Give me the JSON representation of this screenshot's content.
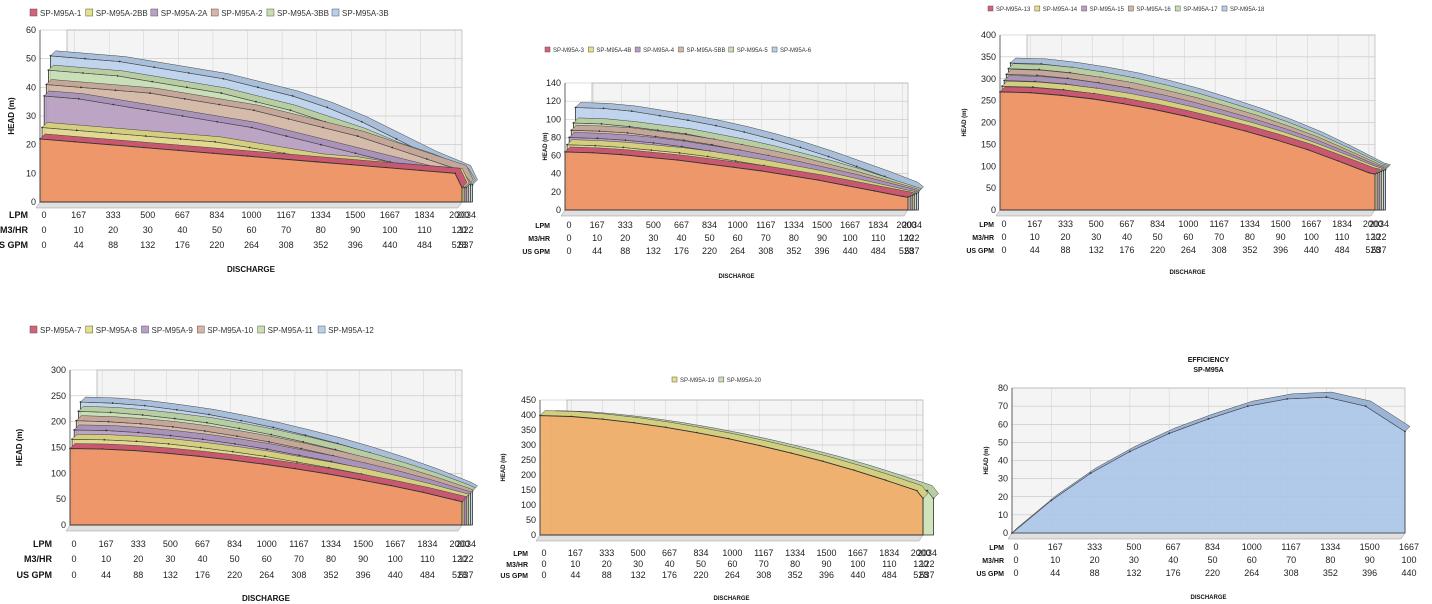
{
  "common": {
    "ylabel": "HEAD (m)",
    "xlabel": "DISCHARGE",
    "row_labels": [
      "LPM",
      "M3/HR",
      "US GPM"
    ],
    "lpm": [
      "0",
      "167",
      "333",
      "500",
      "667",
      "834",
      "1000",
      "1167",
      "1334",
      "1500",
      "1667",
      "1834",
      "2000",
      "2034"
    ],
    "m3hr": [
      "0",
      "10",
      "20",
      "30",
      "40",
      "50",
      "60",
      "70",
      "80",
      "90",
      "100",
      "110",
      "120",
      "122"
    ],
    "usgpm": [
      "0",
      "44",
      "88",
      "132",
      "176",
      "220",
      "264",
      "308",
      "352",
      "396",
      "440",
      "484",
      "528",
      "537"
    ]
  },
  "chart_data": [
    {
      "type": "area",
      "x": [
        0,
        10,
        20,
        30,
        40,
        50,
        60,
        70,
        80,
        90,
        100,
        110,
        120,
        122
      ],
      "xlabel": "DISCHARGE",
      "ylabel": "HEAD (m)",
      "ylim": [
        0,
        60
      ],
      "yticks": [
        0,
        10,
        20,
        30,
        40,
        50,
        60
      ],
      "legend": "top",
      "series": [
        {
          "name": "SP-M95A-1",
          "color": "#d9607a",
          "values": [
            22,
            21,
            20,
            19,
            18,
            17,
            16,
            15,
            14,
            13,
            12,
            11,
            10,
            5
          ]
        },
        {
          "name": "SP-M95A-2BB",
          "color": "#e6e08a",
          "values": [
            26,
            25,
            24,
            23,
            22,
            21,
            19,
            17,
            15,
            14,
            12,
            11,
            10,
            5
          ]
        },
        {
          "name": "SP-M95A-2A",
          "color": "#b8a0c8",
          "values": [
            37,
            36,
            34,
            32,
            30,
            28,
            26,
            23,
            20,
            17,
            14,
            11,
            8,
            5
          ]
        },
        {
          "name": "SP-M95A-2",
          "color": "#d6b6a6",
          "values": [
            41,
            40,
            39,
            38,
            36,
            34,
            32,
            29,
            26,
            23,
            19,
            15,
            11,
            6
          ]
        },
        {
          "name": "SP-M95A-3BB",
          "color": "#c8e0b0",
          "values": [
            46,
            45,
            44,
            42,
            40,
            38,
            35,
            32,
            28,
            24,
            19,
            15,
            10,
            6
          ]
        },
        {
          "name": "SP-M95A-3B",
          "color": "#b8d0ec",
          "values": [
            51,
            50,
            49,
            47,
            45,
            43,
            40,
            37,
            33,
            28,
            22,
            16,
            11,
            6
          ]
        }
      ]
    },
    {
      "type": "area",
      "x": [
        0,
        10,
        20,
        30,
        40,
        50,
        60,
        70,
        80,
        90,
        100,
        110,
        120,
        122
      ],
      "xlabel": "DISCHARGE",
      "ylabel": "HEAD (m)",
      "ylim": [
        0,
        140
      ],
      "yticks": [
        0,
        20,
        40,
        60,
        80,
        100,
        120,
        140
      ],
      "legend": "top",
      "series": [
        {
          "name": "SP-M95A-3",
          "color": "#d9607a",
          "values": [
            64,
            63,
            61,
            58,
            55,
            51,
            47,
            43,
            38,
            33,
            27,
            21,
            15,
            14
          ]
        },
        {
          "name": "SP-M95A-4B",
          "color": "#e6e08a",
          "values": [
            72,
            71,
            69,
            66,
            63,
            59,
            54,
            49,
            43,
            37,
            30,
            23,
            16,
            15
          ]
        },
        {
          "name": "SP-M95A-4",
          "color": "#b8a0c8",
          "values": [
            80,
            79,
            77,
            74,
            70,
            65,
            60,
            54,
            48,
            41,
            34,
            26,
            18,
            16
          ]
        },
        {
          "name": "SP-M95A-5BB",
          "color": "#d6b6a6",
          "values": [
            88,
            87,
            85,
            81,
            77,
            72,
            66,
            60,
            53,
            45,
            37,
            28,
            19,
            17
          ]
        },
        {
          "name": "SP-M95A-5",
          "color": "#c8e0b0",
          "values": [
            96,
            95,
            92,
            88,
            84,
            78,
            72,
            65,
            57,
            49,
            40,
            30,
            20,
            18
          ]
        },
        {
          "name": "SP-M95A-6",
          "color": "#b8d0ec",
          "values": [
            113,
            112,
            109,
            104,
            99,
            93,
            86,
            78,
            69,
            59,
            48,
            37,
            25,
            20
          ]
        }
      ]
    },
    {
      "type": "area",
      "x": [
        0,
        10,
        20,
        30,
        40,
        50,
        60,
        70,
        80,
        90,
        100,
        110,
        120,
        122
      ],
      "xlabel": "DISCHARGE",
      "ylabel": "HEAD (m)",
      "ylim": [
        0,
        400
      ],
      "yticks": [
        0,
        50,
        100,
        150,
        200,
        250,
        300,
        350,
        400
      ],
      "legend": "top",
      "series": [
        {
          "name": "SP-M95A-13",
          "color": "#d9607a",
          "values": [
            270,
            268,
            262,
            254,
            243,
            230,
            215,
            198,
            180,
            160,
            138,
            112,
            85,
            82
          ]
        },
        {
          "name": "SP-M95A-14",
          "color": "#e6e08a",
          "values": [
            283,
            281,
            275,
            266,
            255,
            241,
            225,
            207,
            188,
            167,
            143,
            116,
            88,
            84
          ]
        },
        {
          "name": "SP-M95A-15",
          "color": "#b8a0c8",
          "values": [
            296,
            294,
            288,
            278,
            266,
            252,
            235,
            216,
            196,
            174,
            149,
            120,
            90,
            86
          ]
        },
        {
          "name": "SP-M95A-16",
          "color": "#d6b6a6",
          "values": [
            310,
            308,
            301,
            291,
            279,
            263,
            246,
            226,
            205,
            181,
            155,
            124,
            92,
            88
          ]
        },
        {
          "name": "SP-M95A-17",
          "color": "#c8e0b0",
          "values": [
            323,
            321,
            314,
            303,
            290,
            274,
            256,
            235,
            213,
            188,
            160,
            128,
            94,
            90
          ]
        },
        {
          "name": "SP-M95A-18",
          "color": "#b8d0ec",
          "values": [
            336,
            334,
            326,
            315,
            302,
            285,
            266,
            244,
            221,
            195,
            166,
            132,
            96,
            92
          ]
        }
      ]
    },
    {
      "type": "area",
      "x": [
        0,
        10,
        20,
        30,
        40,
        50,
        60,
        70,
        80,
        90,
        100,
        110,
        120,
        122
      ],
      "xlabel": "DISCHARGE",
      "ylabel": "HEAD (m)",
      "ylim": [
        0,
        300
      ],
      "yticks": [
        0,
        50,
        100,
        150,
        200,
        250,
        300
      ],
      "legend": "top",
      "series": [
        {
          "name": "SP-M95A-7",
          "color": "#d9607a",
          "values": [
            148,
            147,
            144,
            139,
            133,
            126,
            118,
            109,
            99,
            88,
            76,
            63,
            48,
            45
          ]
        },
        {
          "name": "SP-M95A-8",
          "color": "#e6e08a",
          "values": [
            166,
            165,
            162,
            157,
            150,
            142,
            133,
            122,
            111,
            99,
            85,
            70,
            53,
            50
          ]
        },
        {
          "name": "SP-M95A-9",
          "color": "#b8a0c8",
          "values": [
            184,
            183,
            179,
            173,
            166,
            157,
            147,
            135,
            123,
            109,
            94,
            77,
            58,
            54
          ]
        },
        {
          "name": "SP-M95A-10",
          "color": "#d6b6a6",
          "values": [
            202,
            200,
            196,
            190,
            182,
            172,
            161,
            148,
            134,
            119,
            103,
            84,
            63,
            58
          ]
        },
        {
          "name": "SP-M95A-11",
          "color": "#c8e0b0",
          "values": [
            220,
            218,
            213,
            206,
            198,
            187,
            175,
            161,
            146,
            129,
            111,
            91,
            68,
            62
          ]
        },
        {
          "name": "SP-M95A-12",
          "color": "#b8d0ec",
          "values": [
            238,
            236,
            231,
            223,
            214,
            202,
            189,
            174,
            158,
            140,
            120,
            98,
            73,
            66
          ]
        }
      ]
    },
    {
      "type": "area",
      "x": [
        0,
        10,
        20,
        30,
        40,
        50,
        60,
        70,
        80,
        90,
        100,
        110,
        120,
        122
      ],
      "xlabel": "DISCHARGE",
      "ylabel": "HEAD (m)",
      "ylim": [
        0,
        450
      ],
      "yticks": [
        0,
        50,
        100,
        150,
        200,
        250,
        300,
        350,
        400,
        450
      ],
      "legend": "top",
      "series": [
        {
          "name": "SP-M95A-19",
          "color": "#e6e08a",
          "values": [
            398,
            395,
            386,
            374,
            359,
            341,
            321,
            298,
            273,
            246,
            216,
            183,
            148,
            122
          ]
        },
        {
          "name": "SP-M95A-20",
          "color": "#c8e0b0",
          "values": [
            398,
            395,
            386,
            374,
            359,
            341,
            321,
            298,
            273,
            246,
            216,
            183,
            148,
            122
          ]
        }
      ]
    },
    {
      "type": "area",
      "title": "EFFICIENCY",
      "subtitle": "SP-M95A",
      "x": [
        0,
        10,
        20,
        30,
        40,
        50,
        60,
        70,
        80,
        90,
        100
      ],
      "xlabel": "DISCHARGE",
      "ylabel": "HEAD (m)",
      "ylim": [
        0,
        80
      ],
      "yticks": [
        0,
        10,
        20,
        30,
        40,
        50,
        60,
        70,
        80
      ],
      "lpm": [
        "0",
        "167",
        "333",
        "500",
        "667",
        "834",
        "1000",
        "1167",
        "1334",
        "1500",
        "1667"
      ],
      "m3hr": [
        "0",
        "10",
        "20",
        "30",
        "40",
        "50",
        "60",
        "70",
        "80",
        "90",
        "100"
      ],
      "usgpm": [
        "0",
        "44",
        "88",
        "132",
        "176",
        "220",
        "264",
        "308",
        "352",
        "396",
        "440"
      ],
      "series": [
        {
          "color": "#a8c4e8",
          "values": [
            0,
            18,
            33,
            45,
            55,
            63,
            70,
            74,
            75,
            70,
            56
          ]
        }
      ]
    }
  ]
}
